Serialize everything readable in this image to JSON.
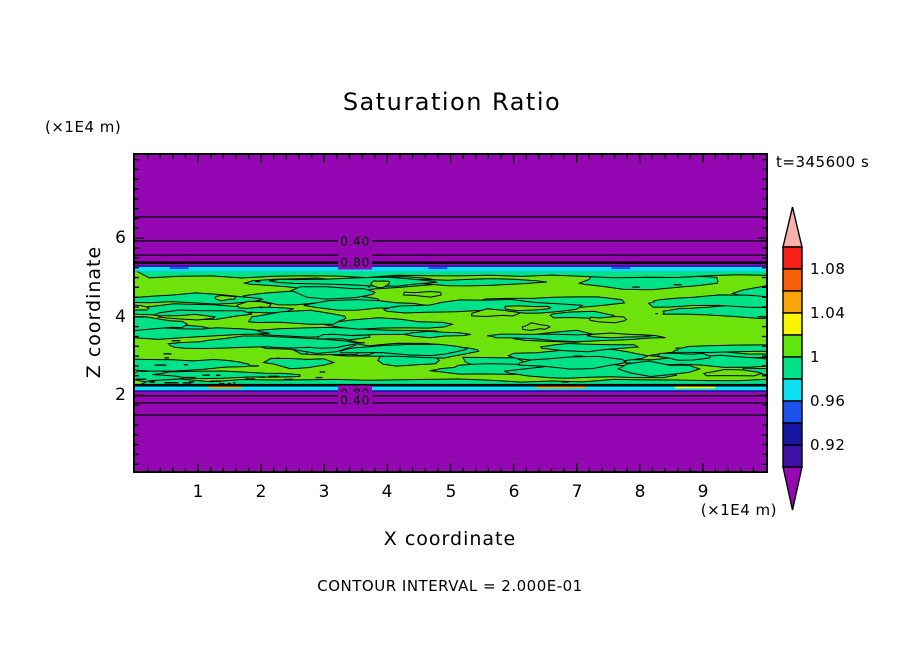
{
  "window": {
    "background": "#ffffff"
  },
  "chart_data": {
    "type": "filled-contour",
    "title": "Saturation Ratio",
    "time_label": "t=345600 s",
    "xlabel": "X coordinate",
    "ylabel": "Z coordinate",
    "x_unit_label": "(×1E4 m)",
    "y_unit_label": "(×1E4 m)",
    "contour_interval_label": "CONTOUR INTERVAL = 2.000E-01",
    "contour_interval": 0.2,
    "xlim": [
      0,
      10
    ],
    "zlim": [
      0,
      8.1
    ],
    "xticks": [
      "1",
      "2",
      "3",
      "4",
      "5",
      "6",
      "7",
      "8",
      "9"
    ],
    "zticks": [
      "2",
      "4",
      "6"
    ],
    "x_minor_step": 0.2,
    "z_minor_step": 0.25,
    "grid": false,
    "field_description": "Horizontally stratified saturation ratio: strongly subsaturated (purple, S<0.9) above z~5.2 and below z~2.1, sharp cyan/blue gradient edges, and a turbulent near-saturated cloud band (S~0.98-1.02, mottled greens) between z~2.3 and z~5.2",
    "colors": {
      "text": "#000000",
      "contour_line": "#000000",
      "field_purple": "#9607b4",
      "cloud_base_green": "#6de30b",
      "cloud_mottle_green": "#00e287",
      "cyan_edge": "#0de0f0",
      "navy_edge": "#1717a3",
      "blue_dash": "#1c53ee",
      "orange_dash": "#f9a408",
      "yellow_dash": "#f9f400"
    },
    "bands": [
      {
        "name": "upper-subsaturated",
        "color_key": "field_purple",
        "z_top": 8.12,
        "z_bottom": 5.31
      },
      {
        "name": "upper-navy-edge",
        "color_key": "navy_edge",
        "z_top": 5.31,
        "z_bottom": 5.27
      },
      {
        "name": "upper-cyan-edge",
        "color_key": "cyan_edge",
        "z_top": 5.27,
        "z_bottom": 5.15
      },
      {
        "name": "cloud-band-mottled",
        "color_key": "mottle",
        "z_top": 5.15,
        "z_bottom": 2.26
      },
      {
        "name": "lower-cyan-edge",
        "color_key": "cyan_edge",
        "z_top": 2.26,
        "z_bottom": 2.13
      },
      {
        "name": "lower-navy-edge",
        "color_key": "navy_edge",
        "z_top": 2.13,
        "z_bottom": 2.09
      },
      {
        "name": "lower-subsaturated",
        "color_key": "field_purple",
        "z_top": 2.09,
        "z_bottom": 0
      }
    ],
    "contour_lines": [
      {
        "level": "0.20",
        "z": 6.54,
        "width": 1.2
      },
      {
        "level": "0.40",
        "z": 5.93,
        "width": 1.3
      },
      {
        "level": "0.60",
        "z": 5.57,
        "width": 1.2
      },
      {
        "level": "0.80",
        "z": 5.38,
        "width": 2.4
      },
      {
        "level": "0.80",
        "z": 2.26,
        "width": 2.6
      },
      {
        "level": "0.60",
        "z": 1.99,
        "width": 1.3
      },
      {
        "level": "0.40",
        "z": 1.81,
        "width": 1.3
      },
      {
        "level": "0.20",
        "z": 1.5,
        "width": 1.2
      }
    ],
    "contour_labels": [
      {
        "text": "0.40",
        "x": 3.49,
        "z": 5.93
      },
      {
        "text": "0.80",
        "x": 3.49,
        "z": 5.39
      },
      {
        "text": "0.80",
        "x": 3.49,
        "z": 2.07
      },
      {
        "text": "0.40",
        "x": 3.49,
        "z": 1.89
      }
    ],
    "upper_edge_dashes": [
      {
        "x0": 0.55,
        "x1": 0.85,
        "color_key": "blue_dash"
      },
      {
        "x0": 4.65,
        "x1": 4.95,
        "color_key": "blue_dash"
      },
      {
        "x0": 7.55,
        "x1": 7.85,
        "color_key": "blue_dash"
      }
    ],
    "lower_edge_dashes": [
      {
        "x0": 1.15,
        "x1": 1.7,
        "color_key": "orange_dash"
      },
      {
        "x0": 3.25,
        "x1": 3.7,
        "color_key": "orange_dash"
      },
      {
        "x0": 6.35,
        "x1": 7.15,
        "color_key": "orange_dash"
      },
      {
        "x0": 8.55,
        "x1": 9.2,
        "color_key": "yellow_dash"
      }
    ],
    "colorbar": {
      "tick_labels": [
        "1.08",
        "1.04",
        "1",
        "0.96",
        "0.92"
      ],
      "over_arrow_color": "#f9afac",
      "under_arrow_color": "#9607b4",
      "segments": [
        {
          "color": "#f7201a",
          "min": 1.08,
          "max": 1.1
        },
        {
          "color": "#f85f0a",
          "min": 1.06,
          "max": 1.08
        },
        {
          "color": "#f9a408",
          "min": 1.04,
          "max": 1.06
        },
        {
          "color": "#f9f400",
          "min": 1.02,
          "max": 1.04
        },
        {
          "color": "#5fe60c",
          "min": 1.0,
          "max": 1.02
        },
        {
          "color": "#00e287",
          "min": 0.98,
          "max": 1.0
        },
        {
          "color": "#0de0f0",
          "min": 0.96,
          "max": 0.98
        },
        {
          "color": "#1c53ee",
          "min": 0.94,
          "max": 0.96
        },
        {
          "color": "#1717a3",
          "min": 0.92,
          "max": 0.94
        },
        {
          "color": "#3d11a6",
          "min": 0.9,
          "max": 0.92
        }
      ]
    }
  }
}
